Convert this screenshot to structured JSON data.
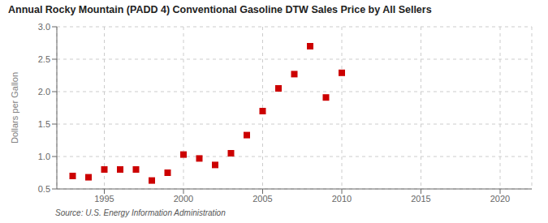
{
  "chart_data": {
    "type": "scatter",
    "title": "Annual Rocky Mountain (PADD 4) Conventional Gasoline DTW Sales Price by All Sellers",
    "ylabel": "Dollars per Gallon",
    "source": "Source: U.S. Energy Information Administration",
    "x": [
      1993,
      1994,
      1995,
      1996,
      1997,
      1998,
      1999,
      2000,
      2001,
      2002,
      2003,
      2004,
      2005,
      2006,
      2007,
      2008,
      2009,
      2010
    ],
    "values": [
      0.7,
      0.68,
      0.8,
      0.8,
      0.8,
      0.63,
      0.75,
      1.03,
      0.97,
      0.87,
      1.05,
      1.33,
      1.7,
      2.05,
      2.27,
      2.7,
      1.91,
      2.29
    ],
    "color": "#cc0000",
    "marker": "square",
    "xlim": [
      1992,
      2022
    ],
    "ylim": [
      0.5,
      3.0
    ],
    "xticks": [
      1995,
      2000,
      2005,
      2010,
      2015,
      2020
    ],
    "yticks": [
      0.5,
      {
        "value": 1,
        "label": "1.0"
      },
      1.5,
      {
        "value": 2,
        "label": "2.0"
      },
      2.5,
      {
        "value": 3,
        "label": "3.0"
      }
    ],
    "grid": true
  }
}
